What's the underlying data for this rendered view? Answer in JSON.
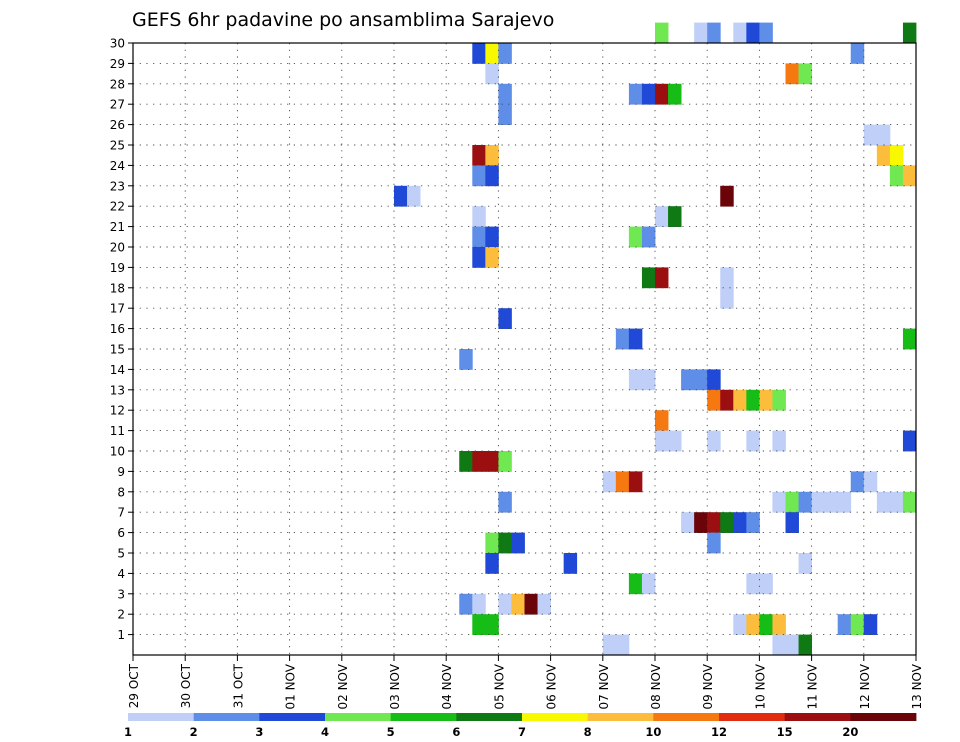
{
  "chart_data": {
    "type": "heatmap",
    "title": "GEFS 6hr padavine po ansamblima Sarajevo",
    "xlabel": "",
    "ylabel": "",
    "x_ticks": [
      "29 OCT",
      "30 OCT",
      "31 OCT",
      "01 NOV",
      "02 NOV",
      "03 NOV",
      "04 NOV",
      "05 NOV",
      "06 NOV",
      "07 NOV",
      "08 NOV",
      "09 NOV",
      "10 NOV",
      "11 NOV",
      "12 NOV",
      "13 NOV"
    ],
    "y_ticks": [
      "1",
      "2",
      "3",
      "4",
      "5",
      "6",
      "7",
      "8",
      "9",
      "10",
      "11",
      "12",
      "13",
      "14",
      "15",
      "16",
      "17",
      "18",
      "19",
      "20",
      "21",
      "22",
      "23",
      "24",
      "25",
      "26",
      "27",
      "28",
      "29",
      "30"
    ],
    "xlim_steps": [
      0,
      60
    ],
    "steps_per_day": 4,
    "ylim_members": [
      0,
      30
    ],
    "grid": true,
    "colorbar": {
      "colors": [
        "#bfcff7",
        "#5f8ee8",
        "#1f49d6",
        "#70e852",
        "#16bd16",
        "#0f7a14",
        "#f8f800",
        "#fcbc3c",
        "#f57910",
        "#e02d10",
        "#9c0f10",
        "#6a0408"
      ],
      "labels": [
        "1",
        "2",
        "3",
        "4",
        "5",
        "6",
        "7",
        "8",
        "10",
        "12",
        "15",
        "20"
      ]
    },
    "cells": [
      [
        30,
        40,
        4
      ],
      [
        30,
        43,
        1
      ],
      [
        30,
        44,
        2
      ],
      [
        30,
        46,
        1
      ],
      [
        30,
        47,
        3
      ],
      [
        30,
        48,
        2
      ],
      [
        30,
        59,
        6
      ],
      [
        29,
        26,
        3
      ],
      [
        29,
        27,
        7
      ],
      [
        29,
        28,
        2
      ],
      [
        29,
        55,
        2
      ],
      [
        28,
        27,
        1
      ],
      [
        28,
        50,
        9
      ],
      [
        28,
        51,
        4
      ],
      [
        27,
        28,
        2
      ],
      [
        27,
        38,
        2
      ],
      [
        27,
        39,
        3
      ],
      [
        27,
        40,
        11
      ],
      [
        27,
        41,
        5
      ],
      [
        26,
        28,
        2
      ],
      [
        25,
        56,
        1
      ],
      [
        25,
        57,
        1
      ],
      [
        24,
        26,
        11
      ],
      [
        24,
        27,
        8
      ],
      [
        24,
        57,
        8
      ],
      [
        24,
        58,
        7
      ],
      [
        23,
        26,
        2
      ],
      [
        23,
        27,
        3
      ],
      [
        23,
        58,
        4
      ],
      [
        23,
        59,
        8
      ],
      [
        22,
        20,
        3
      ],
      [
        22,
        21,
        1
      ],
      [
        22,
        45,
        12
      ],
      [
        21,
        26,
        1
      ],
      [
        21,
        40,
        1
      ],
      [
        21,
        41,
        6
      ],
      [
        20,
        26,
        2
      ],
      [
        20,
        27,
        3
      ],
      [
        20,
        38,
        4
      ],
      [
        20,
        39,
        2
      ],
      [
        19,
        26,
        3
      ],
      [
        19,
        27,
        8
      ],
      [
        18,
        39,
        6
      ],
      [
        18,
        40,
        11
      ],
      [
        18,
        45,
        1
      ],
      [
        17,
        45,
        1
      ],
      [
        16,
        28,
        3
      ],
      [
        15,
        37,
        2
      ],
      [
        15,
        38,
        3
      ],
      [
        15,
        59,
        5
      ],
      [
        14,
        25,
        2
      ],
      [
        13,
        38,
        1
      ],
      [
        13,
        39,
        1
      ],
      [
        13,
        42,
        2
      ],
      [
        13,
        43,
        2
      ],
      [
        13,
        44,
        3
      ],
      [
        12,
        44,
        9
      ],
      [
        12,
        45,
        11
      ],
      [
        12,
        46,
        8
      ],
      [
        12,
        47,
        5
      ],
      [
        12,
        48,
        8
      ],
      [
        12,
        49,
        4
      ],
      [
        11,
        40,
        9
      ],
      [
        10,
        40,
        1
      ],
      [
        10,
        41,
        1
      ],
      [
        10,
        44,
        1
      ],
      [
        10,
        47,
        1
      ],
      [
        10,
        49,
        1
      ],
      [
        10,
        59,
        3
      ],
      [
        9,
        25,
        6
      ],
      [
        9,
        26,
        11
      ],
      [
        9,
        27,
        11
      ],
      [
        9,
        28,
        4
      ],
      [
        8,
        36,
        1
      ],
      [
        8,
        37,
        9
      ],
      [
        8,
        38,
        11
      ],
      [
        8,
        55,
        2
      ],
      [
        8,
        56,
        1
      ],
      [
        7,
        28,
        2
      ],
      [
        7,
        49,
        1
      ],
      [
        7,
        50,
        4
      ],
      [
        7,
        51,
        2
      ],
      [
        7,
        52,
        1
      ],
      [
        7,
        53,
        1
      ],
      [
        7,
        54,
        1
      ],
      [
        7,
        57,
        1
      ],
      [
        7,
        58,
        1
      ],
      [
        7,
        59,
        4
      ],
      [
        6,
        42,
        1
      ],
      [
        6,
        43,
        12
      ],
      [
        6,
        44,
        11
      ],
      [
        6,
        45,
        6
      ],
      [
        6,
        46,
        3
      ],
      [
        6,
        47,
        2
      ],
      [
        6,
        50,
        3
      ],
      [
        5,
        27,
        4
      ],
      [
        5,
        28,
        6
      ],
      [
        5,
        29,
        3
      ],
      [
        5,
        44,
        2
      ],
      [
        4,
        27,
        3
      ],
      [
        4,
        33,
        3
      ],
      [
        4,
        51,
        1
      ],
      [
        3,
        38,
        5
      ],
      [
        3,
        39,
        1
      ],
      [
        3,
        47,
        1
      ],
      [
        3,
        48,
        1
      ],
      [
        2,
        25,
        2
      ],
      [
        2,
        26,
        1
      ],
      [
        2,
        28,
        1
      ],
      [
        2,
        29,
        8
      ],
      [
        2,
        30,
        12
      ],
      [
        2,
        31,
        1
      ],
      [
        1,
        26,
        5
      ],
      [
        1,
        27,
        5
      ],
      [
        1,
        46,
        1
      ],
      [
        1,
        47,
        8
      ],
      [
        1,
        48,
        5
      ],
      [
        1,
        49,
        8
      ],
      [
        1,
        54,
        2
      ],
      [
        1,
        55,
        4
      ],
      [
        1,
        56,
        3
      ],
      [
        0,
        36,
        1
      ],
      [
        0,
        37,
        1
      ],
      [
        0,
        49,
        1
      ],
      [
        0,
        50,
        1
      ],
      [
        0,
        51,
        6
      ]
    ]
  }
}
